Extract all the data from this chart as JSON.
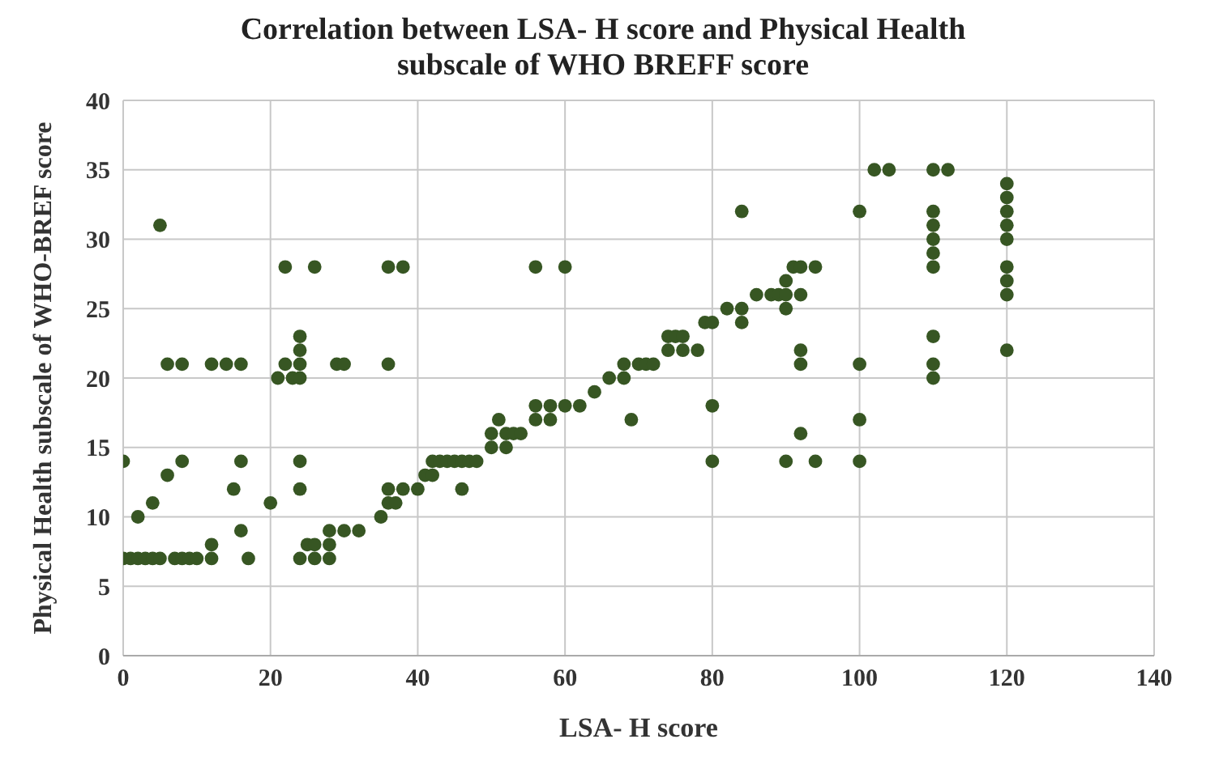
{
  "chart_data": {
    "type": "scatter",
    "title": "Correlation between LSA- H score and Physical Health subscale of WHO BREFF score",
    "xlabel": "LSA- H score",
    "ylabel": "Physical Health subscale of WHO-BREF score",
    "xlim": [
      0,
      140
    ],
    "xticks": [
      0,
      20,
      40,
      60,
      80,
      100,
      120,
      140
    ],
    "ylim": [
      0,
      40
    ],
    "yticks": [
      0,
      5,
      10,
      15,
      20,
      25,
      30,
      35,
      40
    ],
    "grid": true,
    "marker": "circle",
    "series": [
      {
        "color": "#375623",
        "x": [
          0,
          0,
          1,
          2,
          2,
          3,
          4,
          4,
          5,
          5,
          6,
          6,
          7,
          8,
          8,
          8,
          9,
          10,
          12,
          12,
          12,
          14,
          15,
          16,
          16,
          16,
          17,
          20,
          21,
          22,
          22,
          23,
          24,
          24,
          24,
          24,
          24,
          24,
          24,
          25,
          26,
          26,
          26,
          28,
          28,
          28,
          29,
          30,
          30,
          32,
          35,
          36,
          36,
          36,
          36,
          37,
          38,
          38,
          40,
          41,
          42,
          42,
          43,
          44,
          45,
          46,
          46,
          47,
          48,
          50,
          50,
          51,
          52,
          52,
          53,
          54,
          56,
          56,
          56,
          58,
          58,
          60,
          60,
          62,
          64,
          66,
          68,
          68,
          69,
          70,
          71,
          72,
          74,
          74,
          75,
          76,
          76,
          78,
          79,
          80,
          80,
          80,
          82,
          84,
          84,
          84,
          86,
          88,
          89,
          90,
          90,
          90,
          90,
          91,
          92,
          92,
          92,
          92,
          92,
          94,
          94,
          100,
          100,
          100,
          100,
          102,
          104,
          110,
          112,
          110,
          110,
          110,
          110,
          110,
          110,
          110,
          110,
          120,
          120,
          120,
          120,
          120,
          120,
          120,
          120,
          120
        ],
        "values": [
          14,
          7,
          7,
          10,
          7,
          7,
          11,
          7,
          7,
          31,
          13,
          21,
          7,
          7,
          14,
          21,
          7,
          7,
          8,
          7,
          21,
          21,
          12,
          9,
          14,
          21,
          7,
          11,
          20,
          28,
          21,
          20,
          14,
          12,
          20,
          21,
          22,
          23,
          7,
          8,
          8,
          7,
          28,
          9,
          7,
          8,
          21,
          21,
          9,
          9,
          10,
          28,
          21,
          11,
          12,
          11,
          12,
          28,
          12,
          13,
          13,
          14,
          14,
          14,
          14,
          14,
          12,
          14,
          14,
          15,
          16,
          17,
          15,
          16,
          16,
          16,
          28,
          17,
          18,
          17,
          18,
          18,
          28,
          18,
          19,
          20,
          20,
          21,
          17,
          21,
          21,
          21,
          22,
          23,
          23,
          22,
          23,
          22,
          24,
          24,
          18,
          14,
          25,
          24,
          25,
          32,
          26,
          26,
          26,
          25,
          26,
          27,
          14,
          28,
          28,
          26,
          21,
          22,
          16,
          28,
          14,
          32,
          21,
          17,
          14,
          35,
          35,
          35,
          35,
          32,
          31,
          30,
          29,
          28,
          23,
          21,
          20,
          34,
          33,
          32,
          31,
          30,
          28,
          27,
          26,
          22
        ]
      }
    ]
  }
}
